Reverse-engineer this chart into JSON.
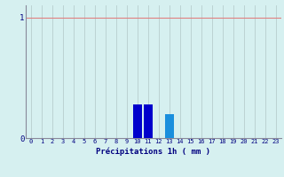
{
  "categories": [
    0,
    1,
    2,
    3,
    4,
    5,
    6,
    7,
    8,
    9,
    10,
    11,
    12,
    13,
    14,
    15,
    16,
    17,
    18,
    19,
    20,
    21,
    22,
    23
  ],
  "values": [
    0,
    0,
    0,
    0,
    0,
    0,
    0,
    0,
    0,
    0,
    0.28,
    0.28,
    0,
    0.2,
    0,
    0,
    0,
    0,
    0,
    0,
    0,
    0,
    0,
    0
  ],
  "bar_color_dark": "#0000cc",
  "bar_color_light": "#1a8fdd",
  "bar_indices_dark": [
    10,
    11
  ],
  "bar_indices_light": [
    13
  ],
  "xlabel": "Précipitations 1h ( mm )",
  "ylim": [
    0,
    1.1
  ],
  "xlim": [
    -0.5,
    23.5
  ],
  "yticks": [
    0,
    1
  ],
  "xtick_labels": [
    "0",
    "1",
    "2",
    "3",
    "4",
    "5",
    "6",
    "7",
    "8",
    "9",
    "10",
    "11",
    "12",
    "13",
    "14",
    "15",
    "16",
    "17",
    "18",
    "19",
    "20",
    "21",
    "22",
    "23"
  ],
  "background_color": "#d6f0f0",
  "grid_color_h_red": "#e08080",
  "grid_color_v": "#b8cece",
  "tick_color": "#000080",
  "xlabel_color": "#000080",
  "bar_width": 0.85
}
